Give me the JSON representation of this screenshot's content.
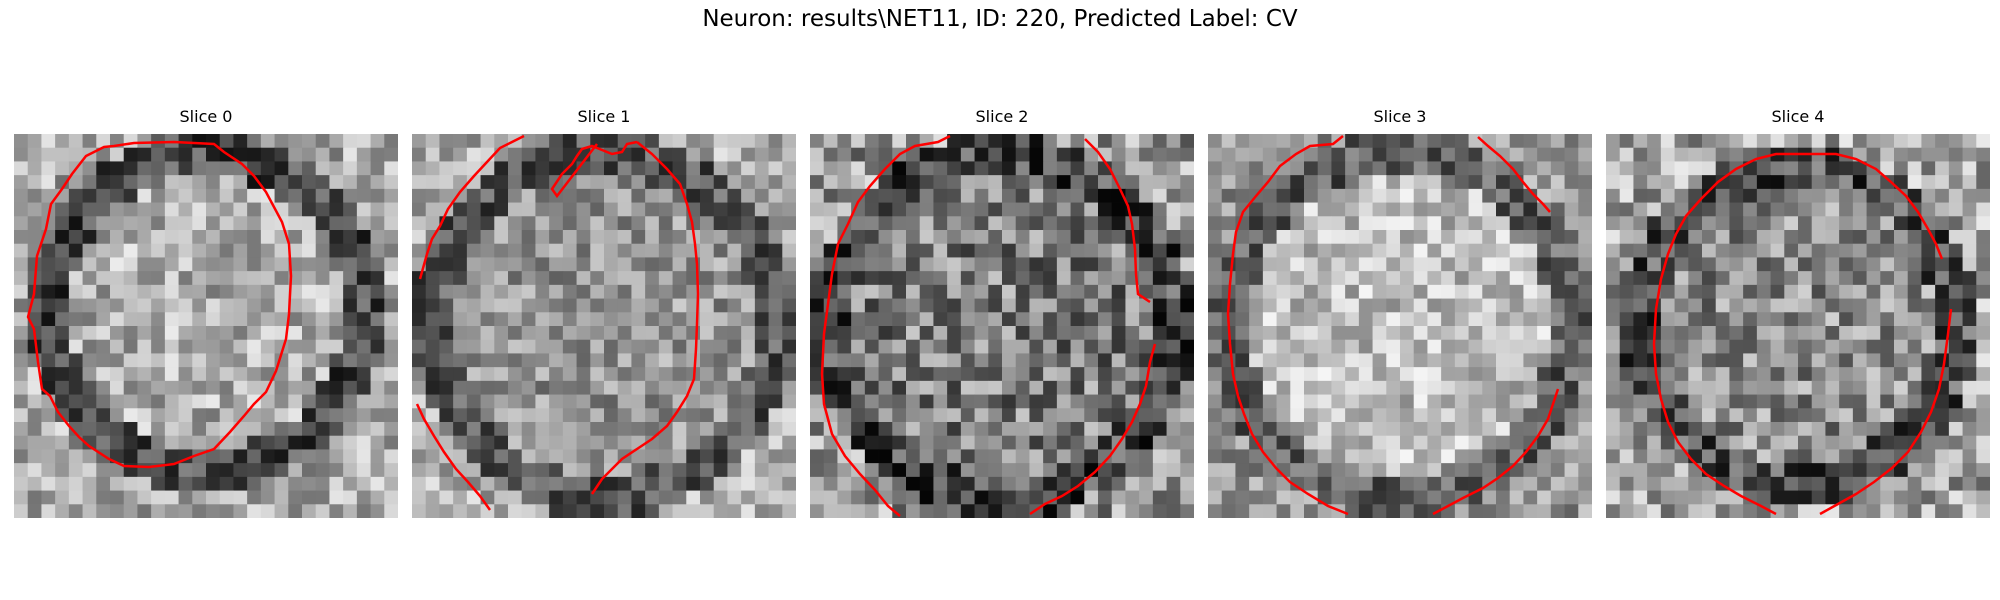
{
  "figure": {
    "title": "Neuron: results\\NET11, ID: 220, Predicted Label: CV"
  },
  "colors": {
    "background": "#ffffff",
    "contour": "#ff0000",
    "colormap": "grayscale"
  },
  "slices": [
    {
      "title": "Slice 0"
    },
    {
      "title": "Slice 1"
    },
    {
      "title": "Slice 2"
    },
    {
      "title": "Slice 3"
    },
    {
      "title": "Slice 4"
    }
  ]
}
